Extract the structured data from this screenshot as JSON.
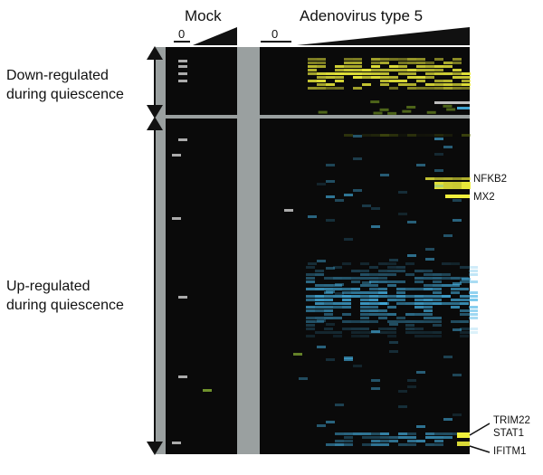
{
  "figure": {
    "mock_label": "Mock",
    "adenovirus_label": "Adenovirus type 5",
    "zero_label": "0",
    "down_label": [
      "Down-regulated",
      "during quiescence"
    ],
    "up_label": [
      "Up-regulated",
      "during quiescence"
    ],
    "genes": [
      "NFKB2",
      "MX2",
      "TRIM22",
      "STAT1",
      "IFITM1"
    ]
  },
  "colors": {
    "background": "#0a0a0a",
    "separator": "#9aa0a0",
    "induced": "#f0f03c",
    "repressed": "#46b4e6",
    "arrow": "#111111"
  }
}
